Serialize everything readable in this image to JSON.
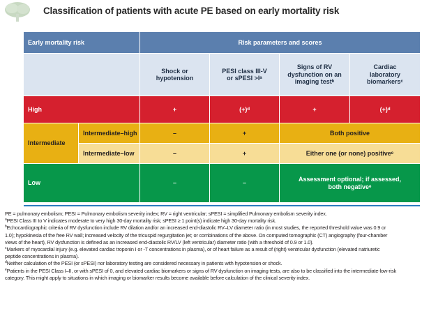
{
  "title": "Classification of patients with acute PE based on early mortality risk",
  "table": {
    "col_risk": "Early mortality risk",
    "col_params": "Risk parameters and scores",
    "params": [
      "Shock or hypotension",
      "PESI class III-V or sPESI >Iᵃ",
      "Signs of RV dysfunction on an imaging testᵇ",
      "Cardiac laboratory biomarkersᶜ"
    ],
    "rows": {
      "high": {
        "label": "High",
        "values": [
          "+",
          "(+)ᵈ",
          "+",
          "(+)ᵈ"
        ]
      },
      "intermediate": {
        "label": "Intermediate"
      },
      "int_high": {
        "label": "Intermediate–high",
        "values": [
          "–",
          "+"
        ],
        "span": "Both positive"
      },
      "int_low": {
        "label": "Intermediate–low",
        "values": [
          "–",
          "+"
        ],
        "span": "Either one (or none) positiveᵉ"
      },
      "low": {
        "label": "Low",
        "values": [
          "–",
          "–"
        ],
        "span_line1": "Assessment optional; if assessed,",
        "span_line2": "both negativeᵉ"
      }
    },
    "colors": {
      "header": "#5b7fae",
      "subheader": "#dbe4f0",
      "high": "#d5202e",
      "intermediate": "#e8b013",
      "intermediate_low": "#f7dd96",
      "low": "#07974a"
    }
  },
  "notes": {
    "abbrev": "PE = pulmonary embolism; PESI = Pulmonary embolism severity index; RV = right ventricular; sPESI = simplified Pulmonary embolism severity index.",
    "a": "PESI Class III to V indicates moderate to very high 30-day mortality risk; sPESI ≥ 1 point(s) indicate high 30-day mortality risk.",
    "b1": "Echocardiographic criteria of RV dysfunction include RV dilation and/or an increased end-diastolic RV–LV diameter ratio (in most studies, the reported threshold value was 0.9 or",
    "b2": "1.0); hypokinesia of the free RV wall; increased velocity of the tricuspid regurgitation jet; or combinations of the above. On computed tomographic (CT) angiography (four-chamber",
    "b3": "views of the heart), RV dysfunction is defined as an increased end-diastolic RV/LV (left ventricular) diameter ratio (with a threshold of 0.9 or 1.0).",
    "c1": "Markers of myocardial injury (e.g. elevated cardiac troponin I or -T concentrations in plasma), or of heart failure as a result of (right) ventricular dysfunction (elevated natriuretic",
    "c2": "peptide concentrations in plasma).",
    "d": "Neither calculation of the PESI (or sPESI) nor laboratory testing are considered necessary in patients with hypotension or shock.",
    "e1": "Patients in the PESI Class I–II, or with sPESI of 0, and elevated cardiac biomarkers or signs of RV dysfunction on imaging tests, are also to be classified into the intermediate-low-risk",
    "e2": "category. This might apply to situations in which imaging or biomarker results become available before calculation of the clinical severity index.",
    "marks": {
      "a": "a",
      "b": "b",
      "c": "c",
      "d": "d",
      "e": "e"
    }
  },
  "icons": {
    "logo": "tree-logo-icon"
  }
}
